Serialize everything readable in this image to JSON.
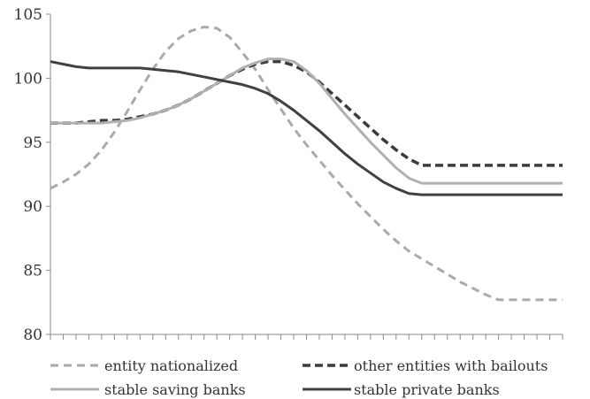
{
  "chart_data": {
    "type": "line",
    "title": "",
    "xlabel": "",
    "ylabel": "",
    "ylim": [
      80,
      105
    ],
    "yticks": [
      80,
      85,
      90,
      95,
      100,
      105
    ],
    "x_tick_labels_shown": false,
    "x": [
      0,
      1,
      2,
      3,
      4,
      5,
      6,
      7,
      8,
      9,
      10,
      11,
      12,
      13,
      14,
      15,
      16,
      17,
      18,
      19,
      20,
      21,
      22,
      23,
      24,
      25,
      26,
      27,
      28,
      29,
      30,
      31,
      32,
      33,
      34,
      35,
      36,
      37,
      38,
      39,
      40
    ],
    "grid": false,
    "legend_position": "bottom",
    "series": [
      {
        "name": "entity nationalized",
        "style": "dashed",
        "color": "#aaaaaa",
        "values": [
          91.4,
          91.9,
          92.5,
          93.3,
          94.4,
          95.8,
          97.4,
          99.1,
          100.7,
          102.1,
          103.1,
          103.7,
          104.0,
          103.9,
          103.2,
          102.0,
          100.7,
          99.1,
          97.6,
          96.1,
          94.8,
          93.6,
          92.4,
          91.3,
          90.2,
          89.2,
          88.2,
          87.3,
          86.5,
          85.9,
          85.3,
          84.7,
          84.1,
          83.6,
          83.1,
          82.7,
          82.7,
          82.7,
          82.7,
          82.7,
          82.7
        ]
      },
      {
        "name": "other entities with bailouts",
        "style": "dashed",
        "color": "#3c3c3c",
        "values": [
          96.5,
          96.5,
          96.5,
          96.6,
          96.7,
          96.7,
          96.8,
          97.0,
          97.2,
          97.5,
          97.9,
          98.4,
          99.0,
          99.6,
          100.2,
          100.7,
          101.1,
          101.3,
          101.3,
          101.0,
          100.5,
          99.7,
          98.8,
          97.9,
          97.0,
          96.1,
          95.2,
          94.4,
          93.7,
          93.2,
          93.2,
          93.2,
          93.2,
          93.2,
          93.2,
          93.2,
          93.2,
          93.2,
          93.2,
          93.2,
          93.2
        ]
      },
      {
        "name": "stable saving banks",
        "style": "solid",
        "color": "#b0b0b0",
        "values": [
          96.5,
          96.5,
          96.5,
          96.5,
          96.5,
          96.6,
          96.7,
          96.9,
          97.2,
          97.5,
          97.9,
          98.4,
          99.0,
          99.6,
          100.2,
          100.8,
          101.2,
          101.5,
          101.5,
          101.3,
          100.6,
          99.6,
          98.4,
          97.2,
          96.1,
          95.0,
          94.0,
          93.0,
          92.2,
          91.8,
          91.8,
          91.8,
          91.8,
          91.8,
          91.8,
          91.8,
          91.8,
          91.8,
          91.8,
          91.8,
          91.8
        ]
      },
      {
        "name": "stable private banks",
        "style": "solid",
        "color": "#404040",
        "values": [
          101.3,
          101.1,
          100.9,
          100.8,
          100.8,
          100.8,
          100.8,
          100.8,
          100.7,
          100.6,
          100.5,
          100.3,
          100.1,
          99.9,
          99.7,
          99.5,
          99.2,
          98.8,
          98.2,
          97.5,
          96.7,
          95.9,
          95.0,
          94.1,
          93.3,
          92.6,
          91.9,
          91.4,
          91.0,
          90.9,
          90.9,
          90.9,
          90.9,
          90.9,
          90.9,
          90.9,
          90.9,
          90.9,
          90.9,
          90.9,
          90.9
        ]
      }
    ]
  }
}
